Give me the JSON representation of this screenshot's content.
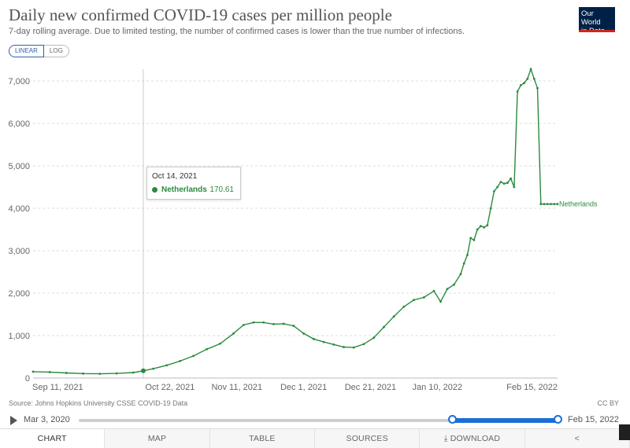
{
  "header": {
    "title": "Daily new confirmed COVID-19 cases per million people",
    "subtitle": "7-day rolling average. Due to limited testing, the number of confirmed cases is lower than the true number of infections.",
    "logo_line1": "Our World",
    "logo_line2": "in Data"
  },
  "scale": {
    "linear": "LINEAR",
    "log": "LOG"
  },
  "tooltip": {
    "date": "Oct 14, 2021",
    "entity": "Netherlands",
    "value": "170.61"
  },
  "chart_data": {
    "type": "line",
    "title": "Daily new confirmed COVID-19 cases per million people",
    "ylim": [
      0,
      7000
    ],
    "yticks": [
      0,
      1000,
      2000,
      3000,
      4000,
      5000,
      6000,
      7000
    ],
    "ytick_labels": [
      "0",
      "1,000",
      "2,000",
      "3,000",
      "4,000",
      "5,000",
      "6,000",
      "7,000"
    ],
    "xtick_labels": [
      "Sep 11, 2021",
      "Oct 22, 2021",
      "Nov 11, 2021",
      "Dec 1, 2021",
      "Dec 21, 2021",
      "Jan 10, 2022",
      "Feb 15, 2022"
    ],
    "xtick_days": [
      0,
      41,
      61,
      81,
      101,
      121,
      157
    ],
    "x_start": "Sep 11, 2021",
    "x_end": "Feb 15, 2022",
    "hover_day": 33,
    "series": [
      {
        "name": "Netherlands",
        "color": "#2b8a3e",
        "x": [
          0,
          5,
          10,
          15,
          20,
          25,
          30,
          33,
          36,
          40,
          44,
          48,
          52,
          56,
          60,
          63,
          66,
          69,
          72,
          75,
          78,
          81,
          84,
          87,
          90,
          93,
          96,
          99,
          102,
          105,
          108,
          111,
          114,
          117,
          120,
          122,
          124,
          126,
          128,
          129,
          130,
          131,
          132,
          133,
          134,
          135,
          136,
          137,
          138,
          139,
          140,
          141,
          142,
          143,
          144,
          145,
          146,
          147,
          148,
          149,
          150,
          151,
          152,
          153,
          154,
          155,
          156,
          157
        ],
        "y": [
          150,
          140,
          120,
          105,
          100,
          110,
          130,
          171,
          220,
          300,
          400,
          520,
          680,
          810,
          1050,
          1250,
          1310,
          1310,
          1270,
          1280,
          1230,
          1050,
          920,
          850,
          790,
          730,
          720,
          800,
          950,
          1200,
          1450,
          1680,
          1840,
          1900,
          2050,
          1800,
          2100,
          2200,
          2450,
          2700,
          2900,
          3300,
          3250,
          3500,
          3580,
          3550,
          3600,
          4000,
          4400,
          4500,
          4620,
          4580,
          4600,
          4700,
          4500,
          6750,
          6900,
          6950,
          7050,
          7280,
          7050,
          6830,
          4100,
          4100,
          4100,
          4100,
          4100,
          4100
        ]
      }
    ]
  },
  "source": "Source: Johns Hopkins University CSSE COVID-19 Data",
  "license": "CC BY",
  "timeline": {
    "start": "Mar 3, 2020",
    "end": "Feb 15, 2022"
  },
  "tabs": [
    "CHART",
    "MAP",
    "TABLE",
    "SOURCES",
    "DOWNLOAD",
    "SHARE"
  ],
  "icons": {
    "play": "play-icon",
    "download": "download-icon",
    "share": "share-icon"
  }
}
